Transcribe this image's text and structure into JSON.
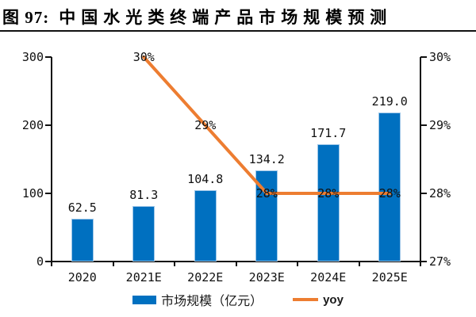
{
  "header": {
    "label": "图 97:",
    "title": "中国水光类终端产品市场规模预测"
  },
  "colors": {
    "bar": "#0070c0",
    "line": "#ed7d31",
    "axis": "#111111",
    "text": "#111111"
  },
  "legend": {
    "bar_label": "市场规模（亿元）",
    "line_label": "yoy"
  },
  "chart_data": {
    "type": "bar+line",
    "title": "中国水光类终端产品市场规模预测",
    "categories": [
      "2020",
      "2021E",
      "2022E",
      "2023E",
      "2024E",
      "2025E"
    ],
    "series": [
      {
        "name": "市场规模（亿元）",
        "type": "bar",
        "axis": "left",
        "values": [
          62.5,
          81.3,
          104.8,
          134.2,
          171.7,
          219.0
        ],
        "labels": [
          "62.5",
          "81.3",
          "104.8",
          "134.2",
          "171.7",
          "219.0"
        ]
      },
      {
        "name": "yoy",
        "type": "line",
        "axis": "right",
        "values": [
          null,
          30,
          29,
          28,
          28,
          28
        ],
        "labels": [
          "",
          "30%",
          "29%",
          "28%",
          "28%",
          "28%"
        ]
      }
    ],
    "left_axis": {
      "min": 0,
      "max": 300,
      "tick_values": [
        300,
        200,
        100,
        0
      ],
      "ticks": [
        "300",
        "200",
        "100",
        "0"
      ]
    },
    "right_axis": {
      "min": 27,
      "max": 30,
      "tick_values": [
        30,
        29,
        28,
        27
      ],
      "ticks": [
        "30%",
        "29%",
        "28%",
        "27%"
      ]
    },
    "grid": false,
    "legend_position": "bottom"
  }
}
